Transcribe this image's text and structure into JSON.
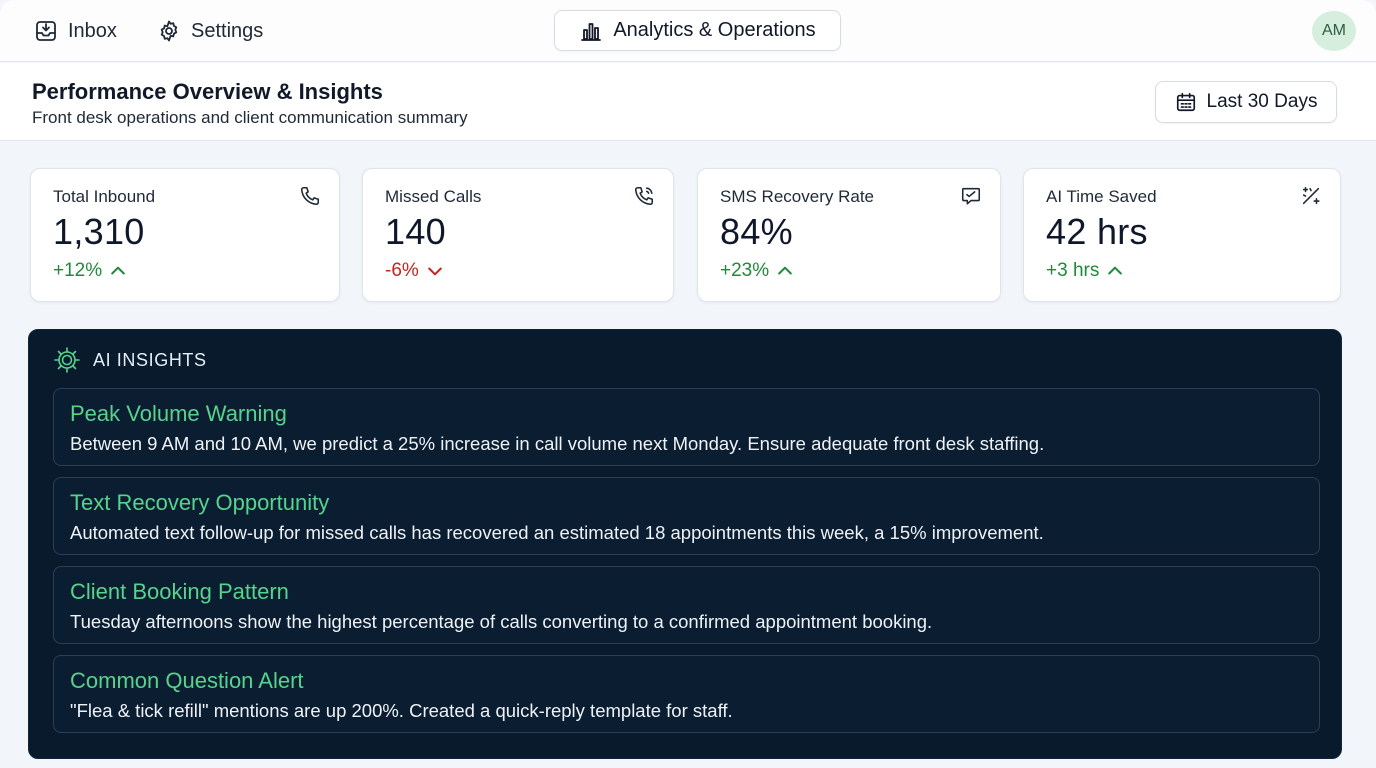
{
  "nav": {
    "inbox_label": "Inbox",
    "settings_label": "Settings",
    "analytics_label": "Analytics & Operations",
    "avatar_initials": "AM"
  },
  "header": {
    "title": "Performance Overview & Insights",
    "subtitle": "Front desk operations and client communication summary",
    "date_range_label": "Last 30 Days"
  },
  "kpis": [
    {
      "label": "Total Inbound",
      "value": "1,310",
      "delta": "+12%",
      "trend": "up",
      "icon": "phone-icon"
    },
    {
      "label": "Missed Calls",
      "value": "140",
      "delta": "-6%",
      "trend": "down",
      "icon": "phone-missed-icon"
    },
    {
      "label": "SMS Recovery Rate",
      "value": "84%",
      "delta": "+23%",
      "trend": "up",
      "icon": "message-icon"
    },
    {
      "label": "AI Time Saved",
      "value": "42 hrs",
      "delta": "+3 hrs",
      "trend": "up",
      "icon": "sparkle-icon"
    }
  ],
  "insights": {
    "title": "AI INSIGHTS",
    "items": [
      {
        "title": "Peak Volume Warning",
        "body": "Between 9 AM and 10 AM, we predict a 25% increase in call volume next Monday. Ensure adequate front desk staffing."
      },
      {
        "title": "Text Recovery Opportunity",
        "body": "Automated text follow-up for missed calls has recovered an estimated 18 appointments this week, a 15% improvement."
      },
      {
        "title": "Client Booking Pattern",
        "body": "Tuesday afternoons show the highest percentage of calls converting to a confirmed appointment booking."
      },
      {
        "title": "Common Question Alert",
        "body": "\"Flea & tick refill\" mentions are up 200%. Created a quick-reply template for staff."
      }
    ]
  },
  "colors": {
    "positive": "#1f8a3b",
    "negative": "#c0261d",
    "insight_title": "#57d38c",
    "insights_bg": "#081a2c"
  }
}
